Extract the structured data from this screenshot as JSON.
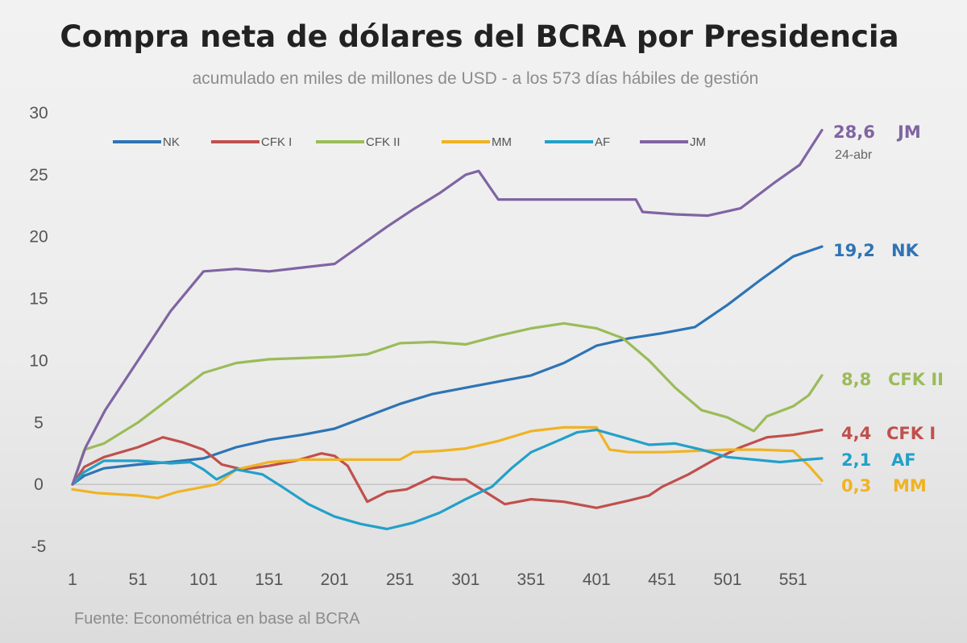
{
  "chart_data": {
    "type": "line",
    "title": "Compra neta de dólares del BCRA por Presidencia",
    "subtitle": "acumulado en miles de millones de USD - a los 573 días hábiles de gestión",
    "source": "Fuente: Econométrica en base al BCRA",
    "xlim": [
      1,
      573
    ],
    "ylim": [
      -5,
      30
    ],
    "x_ticks": [
      "1",
      "51",
      "101",
      "151",
      "201",
      "251",
      "301",
      "351",
      "401",
      "451",
      "501",
      "551"
    ],
    "y_ticks": [
      "30",
      "25",
      "20",
      "15",
      "10",
      "5",
      "0",
      "-5"
    ],
    "grid": false,
    "zero_line": true,
    "legend_position": "top",
    "series": [
      {
        "name": "NK",
        "color": "#2e74b5",
        "end_value": "19,2",
        "end_label": "NK",
        "points": [
          [
            1,
            0
          ],
          [
            10,
            0.7
          ],
          [
            25,
            1.3
          ],
          [
            51,
            1.6
          ],
          [
            75,
            1.8
          ],
          [
            101,
            2.1
          ],
          [
            126,
            3
          ],
          [
            151,
            3.6
          ],
          [
            176,
            4
          ],
          [
            201,
            4.5
          ],
          [
            226,
            5.5
          ],
          [
            251,
            6.5
          ],
          [
            276,
            7.3
          ],
          [
            301,
            7.8
          ],
          [
            326,
            8.3
          ],
          [
            351,
            8.8
          ],
          [
            376,
            9.8
          ],
          [
            401,
            11.2
          ],
          [
            426,
            11.8
          ],
          [
            451,
            12.2
          ],
          [
            476,
            12.7
          ],
          [
            501,
            14.5
          ],
          [
            526,
            16.5
          ],
          [
            551,
            18.4
          ],
          [
            573,
            19.2
          ]
        ]
      },
      {
        "name": "CFK I",
        "color": "#c0504d",
        "end_value": "4,4",
        "end_label": "CFK I",
        "points": [
          [
            1,
            0
          ],
          [
            10,
            1.4
          ],
          [
            25,
            2.2
          ],
          [
            51,
            3
          ],
          [
            70,
            3.8
          ],
          [
            85,
            3.4
          ],
          [
            101,
            2.8
          ],
          [
            115,
            1.6
          ],
          [
            131,
            1.2
          ],
          [
            151,
            1.5
          ],
          [
            171,
            1.9
          ],
          [
            191,
            2.5
          ],
          [
            201,
            2.3
          ],
          [
            211,
            1.5
          ],
          [
            226,
            -1.4
          ],
          [
            241,
            -0.6
          ],
          [
            256,
            -0.4
          ],
          [
            276,
            0.6
          ],
          [
            291,
            0.4
          ],
          [
            301,
            0.4
          ],
          [
            316,
            -0.6
          ],
          [
            331,
            -1.6
          ],
          [
            351,
            -1.2
          ],
          [
            376,
            -1.4
          ],
          [
            401,
            -1.9
          ],
          [
            426,
            -1.3
          ],
          [
            441,
            -0.9
          ],
          [
            451,
            -0.2
          ],
          [
            471,
            0.8
          ],
          [
            491,
            2
          ],
          [
            511,
            3
          ],
          [
            531,
            3.8
          ],
          [
            551,
            4
          ],
          [
            573,
            4.4
          ]
        ]
      },
      {
        "name": "CFK II",
        "color": "#9bbb59",
        "end_value": "8,8",
        "end_label": "CFK II",
        "points": [
          [
            1,
            0
          ],
          [
            10,
            2.8
          ],
          [
            25,
            3.3
          ],
          [
            51,
            5
          ],
          [
            76,
            7
          ],
          [
            101,
            9
          ],
          [
            126,
            9.8
          ],
          [
            151,
            10.1
          ],
          [
            176,
            10.2
          ],
          [
            201,
            10.3
          ],
          [
            226,
            10.5
          ],
          [
            251,
            11.4
          ],
          [
            276,
            11.5
          ],
          [
            301,
            11.3
          ],
          [
            326,
            12
          ],
          [
            351,
            12.6
          ],
          [
            376,
            13
          ],
          [
            401,
            12.6
          ],
          [
            421,
            11.8
          ],
          [
            441,
            10
          ],
          [
            461,
            7.8
          ],
          [
            481,
            6
          ],
          [
            501,
            5.4
          ],
          [
            521,
            4.3
          ],
          [
            531,
            5.5
          ],
          [
            551,
            6.3
          ],
          [
            563,
            7.2
          ],
          [
            573,
            8.8
          ]
        ]
      },
      {
        "name": "MM",
        "color": "#f0b323",
        "end_value": "0,3",
        "end_label": "MM",
        "points": [
          [
            1,
            -0.4
          ],
          [
            20,
            -0.7
          ],
          [
            51,
            -0.9
          ],
          [
            66,
            -1.1
          ],
          [
            81,
            -0.6
          ],
          [
            96,
            -0.3
          ],
          [
            111,
            0
          ],
          [
            126,
            1.2
          ],
          [
            151,
            1.8
          ],
          [
            176,
            2
          ],
          [
            201,
            2
          ],
          [
            226,
            2
          ],
          [
            251,
            2
          ],
          [
            261,
            2.6
          ],
          [
            281,
            2.7
          ],
          [
            301,
            2.9
          ],
          [
            326,
            3.5
          ],
          [
            351,
            4.3
          ],
          [
            376,
            4.6
          ],
          [
            401,
            4.6
          ],
          [
            411,
            2.8
          ],
          [
            426,
            2.6
          ],
          [
            451,
            2.6
          ],
          [
            476,
            2.7
          ],
          [
            501,
            2.8
          ],
          [
            526,
            2.8
          ],
          [
            551,
            2.7
          ],
          [
            563,
            1.5
          ],
          [
            573,
            0.3
          ]
        ]
      },
      {
        "name": "AF",
        "color": "#23a0c9",
        "end_value": "2,1",
        "end_label": "AF",
        "points": [
          [
            1,
            0
          ],
          [
            10,
            1
          ],
          [
            25,
            1.9
          ],
          [
            51,
            1.9
          ],
          [
            76,
            1.7
          ],
          [
            91,
            1.8
          ],
          [
            101,
            1.2
          ],
          [
            111,
            0.4
          ],
          [
            126,
            1.2
          ],
          [
            146,
            0.8
          ],
          [
            161,
            -0.2
          ],
          [
            181,
            -1.6
          ],
          [
            201,
            -2.6
          ],
          [
            221,
            -3.2
          ],
          [
            241,
            -3.6
          ],
          [
            261,
            -3.1
          ],
          [
            281,
            -2.3
          ],
          [
            301,
            -1.2
          ],
          [
            321,
            -0.2
          ],
          [
            336,
            1.3
          ],
          [
            351,
            2.6
          ],
          [
            371,
            3.5
          ],
          [
            386,
            4.2
          ],
          [
            401,
            4.4
          ],
          [
            421,
            3.8
          ],
          [
            441,
            3.2
          ],
          [
            461,
            3.3
          ],
          [
            481,
            2.8
          ],
          [
            501,
            2.2
          ],
          [
            521,
            2
          ],
          [
            541,
            1.8
          ],
          [
            561,
            2
          ],
          [
            573,
            2.1
          ]
        ]
      },
      {
        "name": "JM",
        "color": "#8064a2",
        "end_value": "28,6",
        "end_label": "JM",
        "end_date": "24-abr",
        "points": [
          [
            1,
            0
          ],
          [
            11,
            3
          ],
          [
            26,
            6
          ],
          [
            51,
            10
          ],
          [
            76,
            14
          ],
          [
            101,
            17.2
          ],
          [
            126,
            17.4
          ],
          [
            151,
            17.2
          ],
          [
            176,
            17.5
          ],
          [
            201,
            17.8
          ],
          [
            221,
            19.3
          ],
          [
            241,
            20.8
          ],
          [
            261,
            22.2
          ],
          [
            281,
            23.5
          ],
          [
            301,
            25
          ],
          [
            311,
            25.3
          ],
          [
            326,
            23
          ],
          [
            351,
            23
          ],
          [
            376,
            23
          ],
          [
            401,
            23
          ],
          [
            431,
            23
          ],
          [
            436,
            22
          ],
          [
            461,
            21.8
          ],
          [
            486,
            21.7
          ],
          [
            511,
            22.3
          ],
          [
            536,
            24.3
          ],
          [
            556,
            25.8
          ],
          [
            573,
            28.6
          ]
        ]
      }
    ]
  }
}
